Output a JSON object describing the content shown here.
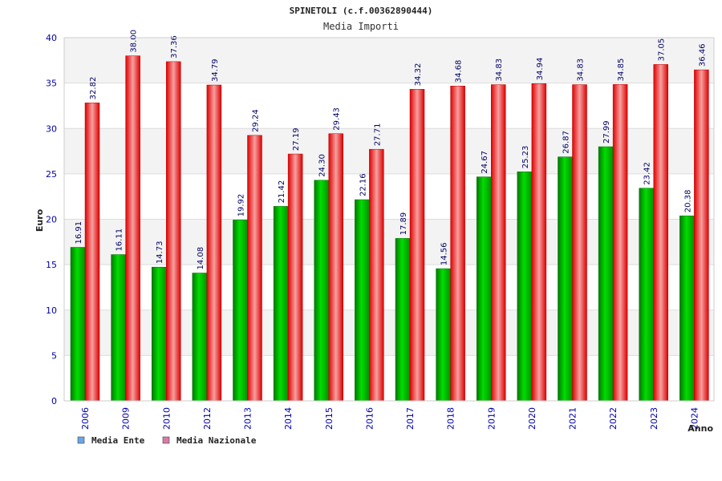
{
  "chart_data": {
    "type": "bar",
    "title": "SPINETOLI (c.f.00362890444)",
    "subtitle": "Media Importi",
    "xlabel": "Anno",
    "ylabel": "Euro",
    "ylim": [
      0,
      40
    ],
    "yticks": [
      "0",
      "5",
      "10",
      "15",
      "20",
      "25",
      "30",
      "35",
      "40"
    ],
    "grid": true,
    "legend_position": "bottom-left",
    "categories": [
      "2006",
      "2009",
      "2010",
      "2012",
      "2013",
      "2014",
      "2015",
      "2016",
      "2017",
      "2018",
      "2019",
      "2020",
      "2021",
      "2022",
      "2023",
      "2024"
    ],
    "series": [
      {
        "name": "Media Ente",
        "color": "#00bb00",
        "legend_color": "#6aa6e8",
        "values": [
          16.91,
          16.11,
          14.73,
          14.08,
          19.92,
          21.42,
          24.3,
          22.16,
          17.89,
          14.56,
          24.67,
          25.23,
          26.87,
          27.99,
          23.42,
          20.38
        ],
        "labels": [
          "16.91",
          "16.11",
          "14.73",
          "14.08",
          "19.92",
          "21.42",
          "24.30",
          "22.16",
          "17.89",
          "14.56",
          "24.67",
          "25.23",
          "26.87",
          "27.99",
          "23.42",
          "20.38"
        ]
      },
      {
        "name": "Media Nazionale",
        "color": "#ee0000",
        "legend_color": "#d97aa6",
        "values": [
          32.82,
          38.0,
          37.36,
          34.79,
          29.24,
          27.19,
          29.43,
          27.71,
          34.32,
          34.68,
          34.83,
          34.94,
          34.83,
          34.85,
          37.05,
          36.46
        ],
        "labels": [
          "32.82",
          "38.00",
          "37.36",
          "34.79",
          "29.24",
          "27.19",
          "29.43",
          "27.71",
          "34.32",
          "34.68",
          "34.83",
          "34.94",
          "34.83",
          "34.85",
          "37.05",
          "36.46"
        ]
      }
    ]
  }
}
